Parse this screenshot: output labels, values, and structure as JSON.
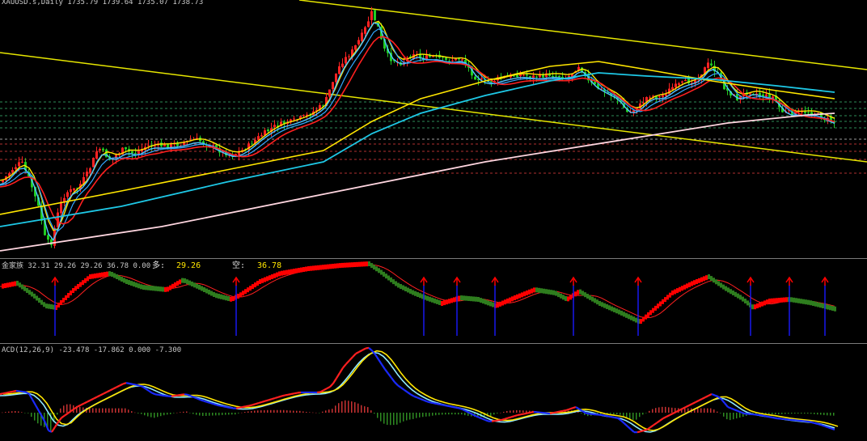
{
  "main": {
    "header": "XAUUSD.s,Daily  1735.79 1739.64 1735.07 1738.73"
  },
  "indicator": {
    "header": "金家族 32.31 29.26 29.26 36.78 0.00",
    "long_label": "多:",
    "long_value": "29.26",
    "short_label": "空:",
    "short_value": "36.78",
    "colors": {
      "up": "#ff0000",
      "down": "#2e7d1e",
      "signal_line": "#ff2020",
      "marker": "#1a1aff",
      "arrow": "#ff0000"
    }
  },
  "macd": {
    "header": "ACD(12,26,9) -23.478 -17.862 0.000 -7.300",
    "colors": {
      "rising": "#ff2020",
      "falling": "#1a2aff",
      "fast": "#ffe600",
      "signal": "#8fe8ff",
      "hist_pos": "#c83232",
      "hist_neg": "#2e8b22"
    }
  },
  "chart_data": [
    {
      "type": "candlestick",
      "symbol": "XAUUSD.s",
      "timeframe": "Daily",
      "last_bar": {
        "open": 1735.79,
        "high": 1739.64,
        "low": 1735.07,
        "close": 1738.73
      },
      "overlays": [
        "moving averages (yellow, red, cyan, white)",
        "yellow trend lines",
        "dashed horizontal levels"
      ],
      "colors": {
        "bull": "#ff2222",
        "bear": "#22cc22",
        "trend": "#e6e600"
      }
    },
    {
      "type": "indicator",
      "name": "金家族",
      "values": [
        32.31,
        29.26,
        29.26,
        36.78,
        0.0
      ],
      "long": 29.26,
      "short": 36.78
    },
    {
      "type": "macd",
      "name": "ACD(12,26,9)",
      "values": [
        -23.478,
        -17.862,
        0.0,
        -7.3
      ]
    }
  ]
}
